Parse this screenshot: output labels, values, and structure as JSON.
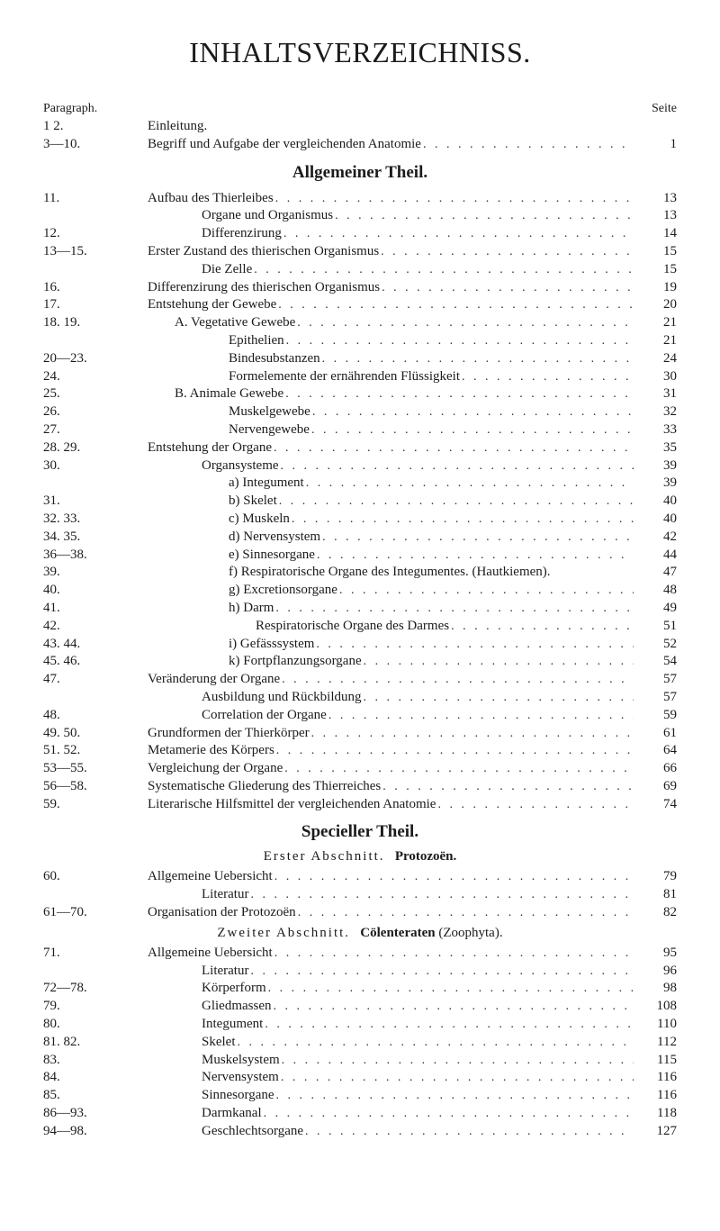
{
  "title": "INHALTSVERZEICHNISS.",
  "col_header_left": "Paragraph.",
  "col_header_right": "Seite",
  "section1_title": "Allgemeiner Theil.",
  "section2_title": "Specieller Theil.",
  "sub_abschnitt1_prefix": "Erster Abschnitt.",
  "sub_abschnitt1_title": "Protozoën.",
  "sub_abschnitt2_prefix": "Zweiter Abschnitt.",
  "sub_abschnitt2_title": "Cölenteraten",
  "sub_abschnitt2_suffix": "(Zoophyta).",
  "before_section1": [
    {
      "para": "1  2.",
      "indent": 0,
      "text": "Einleitung.",
      "page": "",
      "leaders": false
    },
    {
      "para": "3—10.",
      "indent": 0,
      "text": "Begriff und Aufgabe der vergleichenden Anatomie",
      "page": "1",
      "leaders": true
    }
  ],
  "section1_rows": [
    {
      "para": "11.",
      "indent": 0,
      "text": "Aufbau des Thierleibes",
      "page": "13",
      "leaders": true
    },
    {
      "para": "",
      "indent": 2,
      "text": "Organe und Organismus",
      "page": "13",
      "leaders": true
    },
    {
      "para": "12.",
      "indent": 2,
      "text": "Differenzirung",
      "page": "14",
      "leaders": true
    },
    {
      "para": "13—15.",
      "indent": 0,
      "text": "Erster Zustand des thierischen Organismus",
      "page": "15",
      "leaders": true
    },
    {
      "para": "",
      "indent": 2,
      "text": "Die Zelle",
      "page": "15",
      "leaders": true
    },
    {
      "para": "16.",
      "indent": 0,
      "text": "Differenzirung des thierischen Organismus",
      "page": "19",
      "leaders": true
    },
    {
      "para": "17.",
      "indent": 0,
      "text": "Entstehung der Gewebe",
      "page": "20",
      "leaders": true
    },
    {
      "para": "18. 19.",
      "indent": 1,
      "text": "A. Vegetative Gewebe",
      "page": "21",
      "leaders": true
    },
    {
      "para": "",
      "indent": 3,
      "text": "Epithelien",
      "page": "21",
      "leaders": true
    },
    {
      "para": "20—23.",
      "indent": 3,
      "text": "Bindesubstanzen",
      "page": "24",
      "leaders": true
    },
    {
      "para": "24.",
      "indent": 3,
      "text": "Formelemente der ernährenden Flüssigkeit",
      "page": "30",
      "leaders": true
    },
    {
      "para": "25.",
      "indent": 1,
      "text": "B. Animale Gewebe",
      "page": "31",
      "leaders": true
    },
    {
      "para": "26.",
      "indent": 3,
      "text": "Muskelgewebe",
      "page": "32",
      "leaders": true
    },
    {
      "para": "27.",
      "indent": 3,
      "text": "Nervengewebe",
      "page": "33",
      "leaders": true
    },
    {
      "para": "28. 29.",
      "indent": 0,
      "text": "Entstehung der Organe",
      "page": "35",
      "leaders": true
    },
    {
      "para": "30.",
      "indent": 2,
      "text": "Organsysteme",
      "page": "39",
      "leaders": true
    },
    {
      "para": "",
      "indent": 3,
      "text": "a) Integument",
      "page": "39",
      "leaders": true
    },
    {
      "para": "31.",
      "indent": 3,
      "text": "b) Skelet",
      "page": "40",
      "leaders": true
    },
    {
      "para": "32. 33.",
      "indent": 3,
      "text": "c) Muskeln",
      "page": "40",
      "leaders": true
    },
    {
      "para": "34. 35.",
      "indent": 3,
      "text": "d) Nervensystem",
      "page": "42",
      "leaders": true
    },
    {
      "para": "36—38.",
      "indent": 3,
      "text": "e) Sinnesorgane",
      "page": "44",
      "leaders": true
    },
    {
      "para": "39.",
      "indent": 3,
      "text": "f) Respiratorische Organe des Integumentes. (Hautkiemen).",
      "page": "47",
      "leaders": false
    },
    {
      "para": "40.",
      "indent": 3,
      "text": "g) Excretionsorgane",
      "page": "48",
      "leaders": true
    },
    {
      "para": "41.",
      "indent": 3,
      "text": "h) Darm",
      "page": "49",
      "leaders": true
    },
    {
      "para": "42.",
      "indent": 4,
      "text": "Respiratorische Organe des Darmes",
      "page": "51",
      "leaders": true
    },
    {
      "para": "43. 44.",
      "indent": 3,
      "text": "i) Gefässsystem",
      "page": "52",
      "leaders": true
    },
    {
      "para": "45. 46.",
      "indent": 3,
      "text": "k) Fortpflanzungsorgane",
      "page": "54",
      "leaders": true
    },
    {
      "para": "47.",
      "indent": 0,
      "text": "Veränderung der Organe",
      "page": "57",
      "leaders": true
    },
    {
      "para": "",
      "indent": 2,
      "text": "Ausbildung und Rückbildung",
      "page": "57",
      "leaders": true
    },
    {
      "para": "48.",
      "indent": 2,
      "text": "Correlation der Organe",
      "page": "59",
      "leaders": true
    },
    {
      "para": "49. 50.",
      "indent": 0,
      "text": "Grundformen der Thierkörper",
      "page": "61",
      "leaders": true
    },
    {
      "para": "51. 52.",
      "indent": 0,
      "text": "Metamerie des Körpers",
      "page": "64",
      "leaders": true
    },
    {
      "para": "53—55.",
      "indent": 0,
      "text": "Vergleichung der Organe",
      "page": "66",
      "leaders": true
    },
    {
      "para": "56—58.",
      "indent": 0,
      "text": "Systematische Gliederung des Thierreiches",
      "page": "69",
      "leaders": true
    },
    {
      "para": "59.",
      "indent": 0,
      "text": "Literarische Hilfsmittel der vergleichenden Anatomie",
      "page": "74",
      "leaders": true
    }
  ],
  "section2_group1": [
    {
      "para": "60.",
      "indent": 0,
      "text": "Allgemeine Uebersicht",
      "page": "79",
      "leaders": true
    },
    {
      "para": "",
      "indent": 2,
      "text": "Literatur",
      "page": "81",
      "leaders": true
    },
    {
      "para": "61—70.",
      "indent": 0,
      "text": "Organisation der Protozoën",
      "page": "82",
      "leaders": true
    }
  ],
  "section2_group2": [
    {
      "para": "71.",
      "indent": 0,
      "text": "Allgemeine Uebersicht",
      "page": "95",
      "leaders": true
    },
    {
      "para": "",
      "indent": 2,
      "text": "Literatur",
      "page": "96",
      "leaders": true
    },
    {
      "para": "72—78.",
      "indent": 2,
      "text": "Körperform",
      "page": "98",
      "leaders": true
    },
    {
      "para": "79.",
      "indent": 2,
      "text": "Gliedmassen",
      "page": "108",
      "leaders": true
    },
    {
      "para": "80.",
      "indent": 2,
      "text": "Integument",
      "page": "110",
      "leaders": true
    },
    {
      "para": "81. 82.",
      "indent": 2,
      "text": "Skelet",
      "page": "112",
      "leaders": true
    },
    {
      "para": "83.",
      "indent": 2,
      "text": "Muskelsystem",
      "page": "115",
      "leaders": true
    },
    {
      "para": "84.",
      "indent": 2,
      "text": "Nervensystem",
      "page": "116",
      "leaders": true
    },
    {
      "para": "85.",
      "indent": 2,
      "text": "Sinnesorgane",
      "page": "116",
      "leaders": true
    },
    {
      "para": "86—93.",
      "indent": 2,
      "text": "Darmkanal",
      "page": "118",
      "leaders": true
    },
    {
      "para": "94—98.",
      "indent": 2,
      "text": "Geschlechtsorgane",
      "page": "127",
      "leaders": true
    }
  ]
}
